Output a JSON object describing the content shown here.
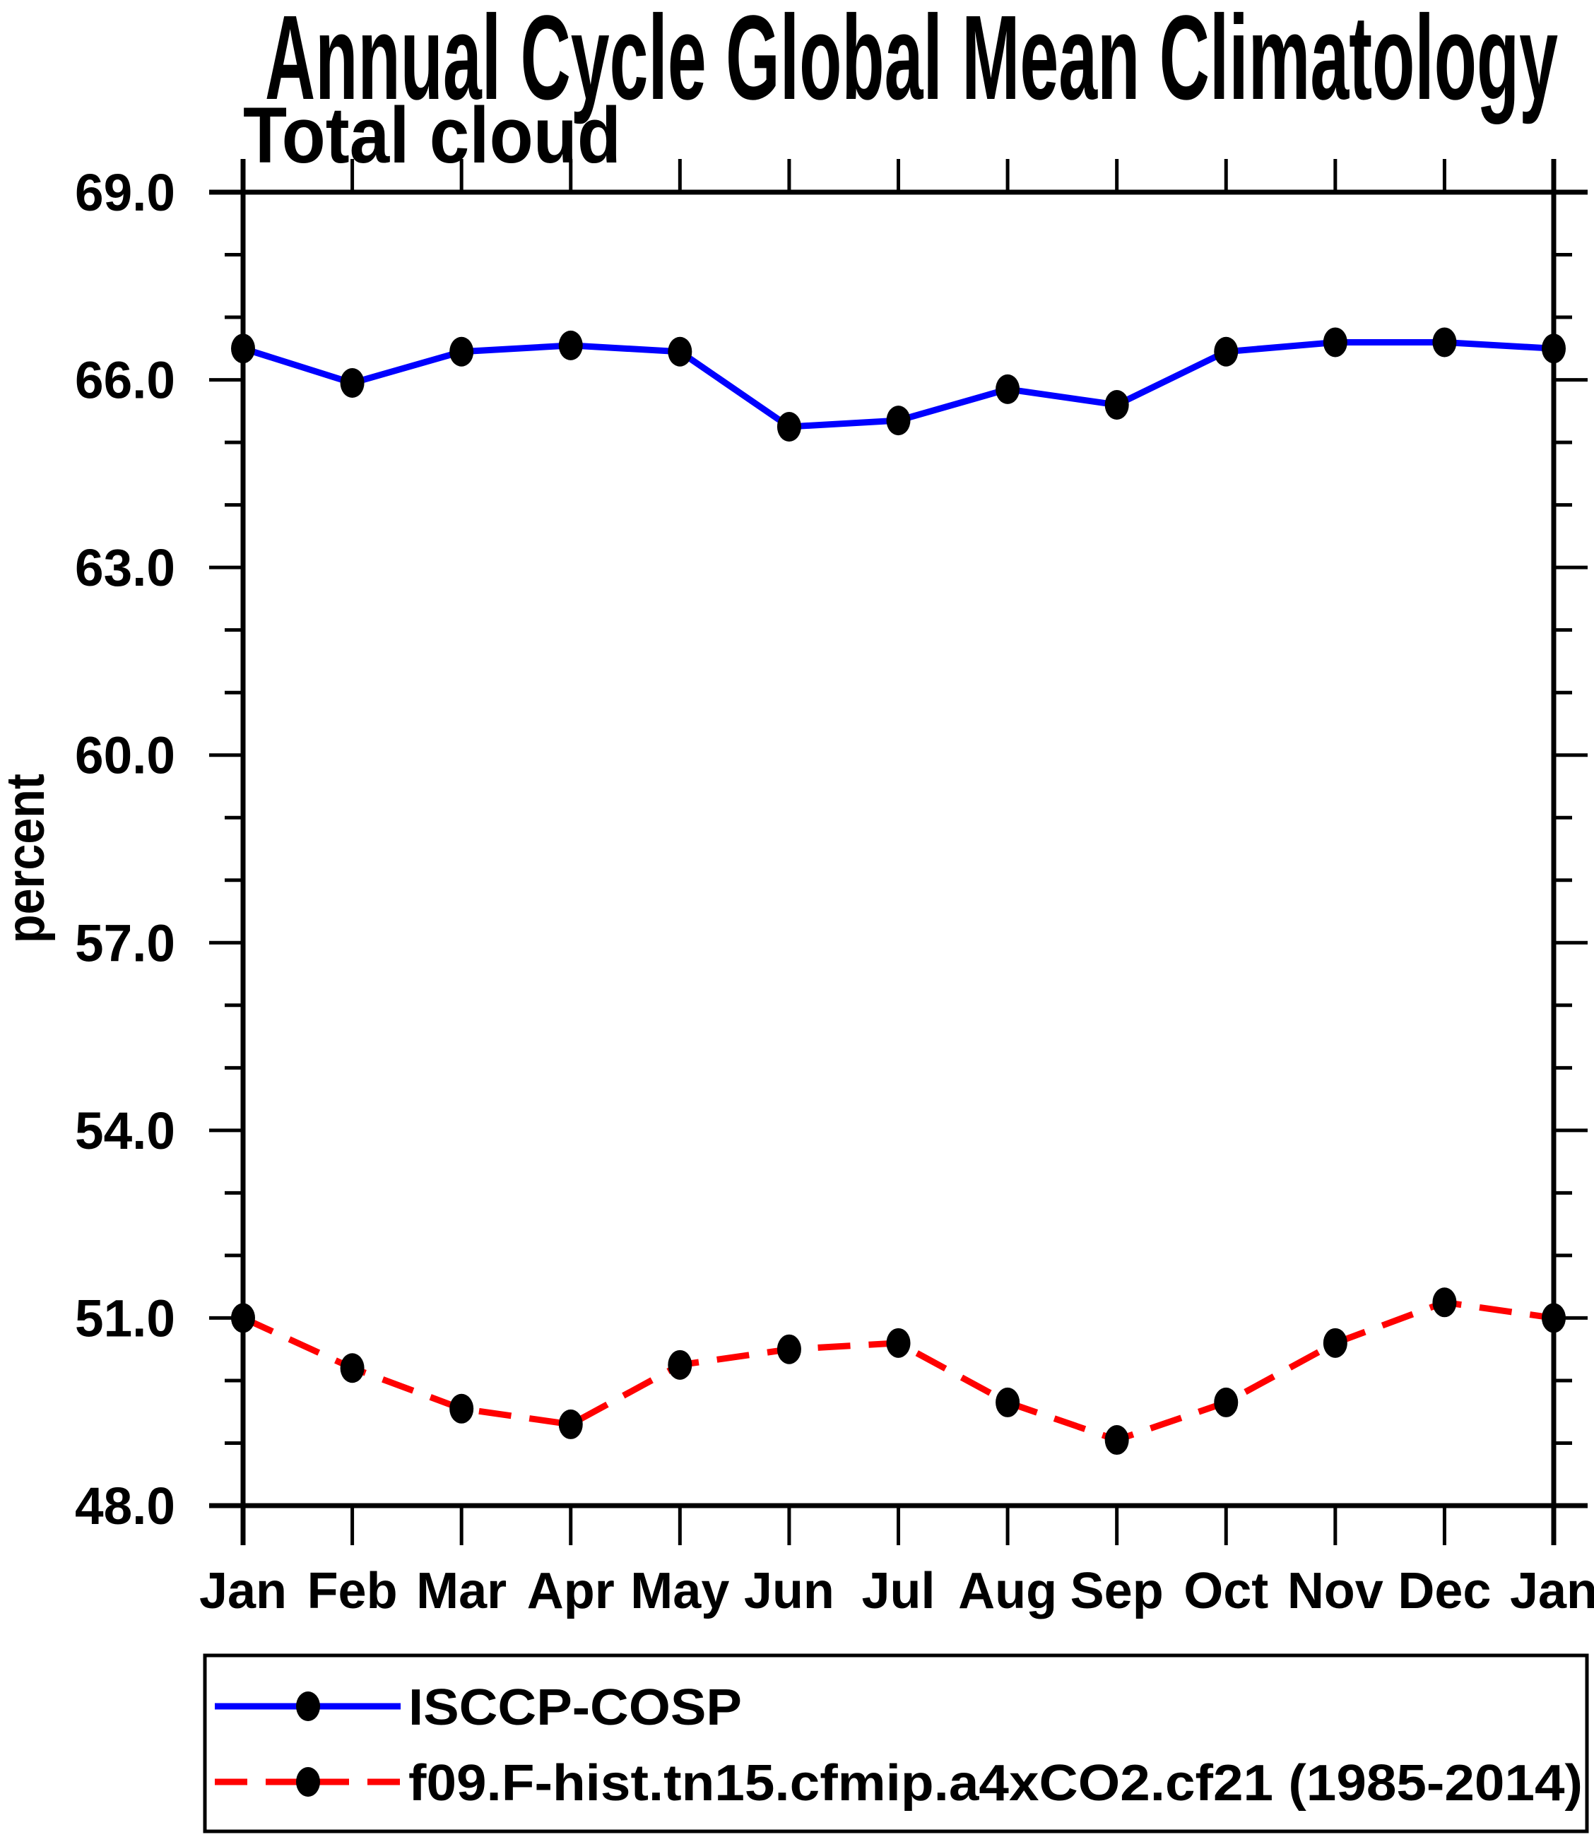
{
  "chart_data": {
    "type": "line",
    "title": "Annual Cycle Global Mean Climatology",
    "subtitle": "Total cloud",
    "ylabel": "percent",
    "xlabel": "",
    "categories": [
      "Jan",
      "Feb",
      "Mar",
      "Apr",
      "May",
      "Jun",
      "Jul",
      "Aug",
      "Sep",
      "Oct",
      "Nov",
      "Dec",
      "Jan"
    ],
    "series": [
      {
        "name": "ISCCP-COSP",
        "color": "#0000ff",
        "line_style": "solid",
        "marker": "black-dot",
        "values": [
          66.5,
          65.95,
          66.45,
          66.55,
          66.45,
          65.25,
          65.35,
          65.85,
          65.6,
          66.45,
          66.6,
          66.6,
          66.5
        ]
      },
      {
        "name": "f09.F-hist.tn15.cfmip.a4xCO2.cf21 (1985-2014)",
        "color": "#ff0000",
        "line_style": "dashed",
        "marker": "black-dot",
        "values": [
          51.0,
          50.2,
          49.55,
          49.3,
          50.25,
          50.5,
          50.6,
          49.65,
          49.05,
          49.65,
          50.6,
          51.25,
          51.0
        ]
      }
    ],
    "ylim": [
      48.0,
      69.0
    ],
    "y_major_step": 3.0,
    "y_minor_step": 1.0,
    "y_tick_labels": [
      "48.0",
      "51.0",
      "54.0",
      "57.0",
      "60.0",
      "63.0",
      "66.0",
      "69.0"
    ],
    "grid": false,
    "legend_position": "bottom-box",
    "marker_color": "#000000",
    "axis_color": "#000000",
    "background_color": "#ffffff"
  }
}
